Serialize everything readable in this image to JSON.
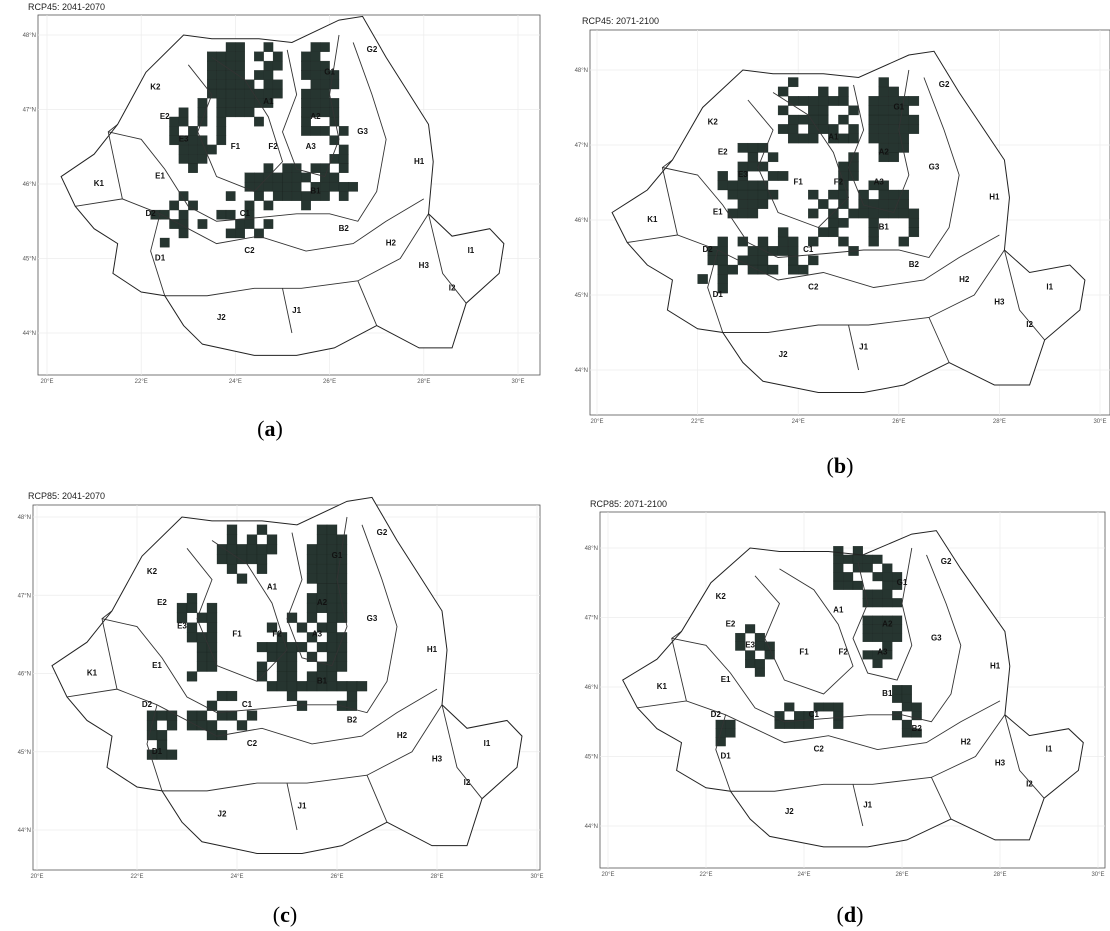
{
  "panels": [
    {
      "title": "RCP45: 2041-2070",
      "caption_letter": "a"
    },
    {
      "title": "RCP45: 2071-2100",
      "caption_letter": "b"
    },
    {
      "title": "RCP85: 2041-2070",
      "caption_letter": "c"
    },
    {
      "title": "RCP85: 2071-2100",
      "caption_letter": "d"
    }
  ],
  "lat_ticks": [
    {
      "value": 44,
      "label": "44°N"
    },
    {
      "value": 45,
      "label": "45°N"
    },
    {
      "value": 46,
      "label": "46°N"
    },
    {
      "value": 47,
      "label": "47°N"
    },
    {
      "value": 48,
      "label": "48°N"
    }
  ],
  "lon_ticks": [
    {
      "value": 20,
      "label": "20°E"
    },
    {
      "value": 22,
      "label": "22°E"
    },
    {
      "value": 24,
      "label": "24°E"
    },
    {
      "value": 26,
      "label": "26°E"
    },
    {
      "value": 28,
      "label": "28°E"
    },
    {
      "value": 30,
      "label": "30°E"
    }
  ],
  "regions": [
    "K1",
    "K2",
    "E1",
    "E2",
    "E3",
    "F1",
    "F2",
    "A1",
    "A2",
    "A3",
    "G1",
    "G2",
    "G3",
    "H1",
    "H2",
    "H3",
    "I1",
    "I2",
    "J1",
    "J2",
    "C1",
    "C2",
    "D1",
    "D2",
    "B1",
    "B2"
  ]
}
